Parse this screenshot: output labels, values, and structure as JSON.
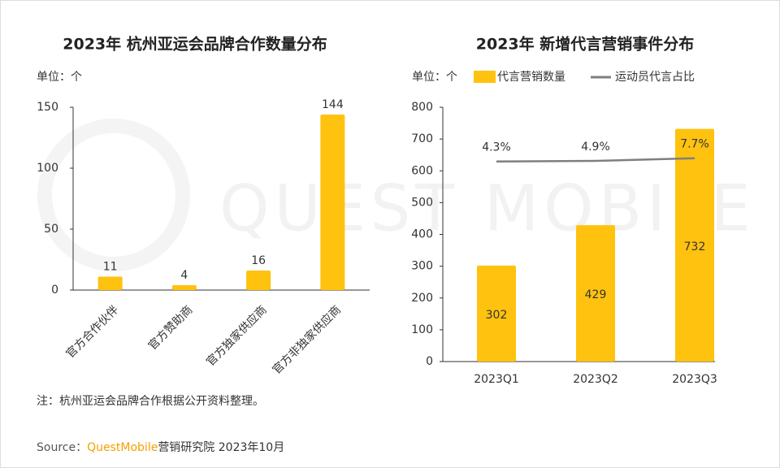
{
  "chart_data": [
    {
      "type": "bar",
      "title": "2023年 杭州亚运会品牌合作数量分布",
      "unit": "单位：个",
      "categories": [
        "官方合作伙伴",
        "官方赞助商",
        "官方独家供应商",
        "官方非独家供应商"
      ],
      "values": [
        11,
        4,
        16,
        144
      ],
      "color": "#FFC20E",
      "ylim": [
        0,
        150
      ],
      "yticks": [
        0,
        50,
        100,
        150
      ]
    },
    {
      "type": "bar-line",
      "title": "2023年 新增代言营销事件分布",
      "unit": "单位：个",
      "categories": [
        "2023Q1",
        "2023Q2",
        "2023Q3"
      ],
      "series": [
        {
          "name": "代言营销数量",
          "type": "bar",
          "color": "#FFC20E",
          "values": [
            302,
            429,
            732
          ]
        },
        {
          "name": "运动员代言占比",
          "type": "line",
          "color": "#7f7f7f",
          "axis": "y2",
          "values": [
            4.3,
            4.9,
            7.7
          ],
          "value_labels": [
            "4.3%",
            "4.9%",
            "7.7%"
          ]
        }
      ],
      "ylim": [
        0,
        800
      ],
      "yticks": [
        0,
        100,
        200,
        300,
        400,
        500,
        600,
        700,
        800
      ],
      "y2lim": [
        -205,
        61
      ],
      "legend": "top"
    }
  ],
  "note": "注：杭州亚运会品牌合作根据公开资料整理。",
  "watermark": "QUEST MOBILE",
  "source": {
    "label": "Source：",
    "brand": "QuestMobile",
    "text": "营销研究院 2023年10月"
  }
}
